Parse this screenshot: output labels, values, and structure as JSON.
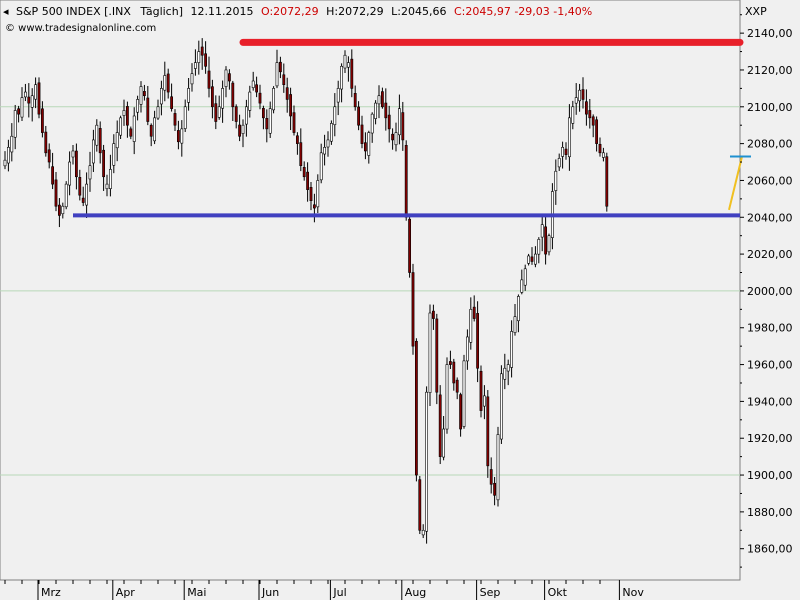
{
  "header": {
    "symbol": "S&P 500 INDEX [.INX",
    "period": "Täglich]",
    "date": "12.11.2015",
    "ohlc": "O:2072,29 H:2072,29 L:2045,66 C:2045,97 -29,03 -1,40%",
    "ohlc_parts": [
      {
        "text": "O:2072,29",
        "color": "#cc0000"
      },
      {
        "text": "H:2072,29",
        "color": "#000000"
      },
      {
        "text": "L:2045,66",
        "color": "#000000"
      },
      {
        "text": "C:2045,97 -29,03 -1,40%",
        "color": "#cc0000"
      }
    ],
    "watermark": "© www.tradesignalonline.com",
    "corner_label": "XXP"
  },
  "colors": {
    "up_candle": "#ffffff",
    "down_candle": "#800000",
    "resistance_line": "#e8202a",
    "support_line": "#4040c0",
    "projection_line": "#f0c020",
    "target_marker": "#1e90d0",
    "gridline": "#b8d8b8"
  },
  "chart_data": {
    "type": "candlestick",
    "title": "S&P 500 INDEX [.INX Täglich]",
    "y_axis": {
      "side": "right",
      "ylim": [
        1843,
        2158
      ],
      "ticks": [
        2140,
        2120,
        2100,
        2080,
        2060,
        2040,
        2020,
        2000,
        1980,
        1960,
        1940,
        1920,
        1900,
        1880,
        1860
      ],
      "tick_labels": [
        "2140,00",
        "2120,00",
        "2100,00",
        "2080,00",
        "2060,00",
        "2040,00",
        "2020,00",
        "2000,00",
        "1980,00",
        "1960,00",
        "1940,00",
        "1920,00",
        "1900,00",
        "1880,00",
        "1860,00"
      ],
      "major_gridlines": [
        2100,
        2000,
        1900
      ]
    },
    "x_axis": {
      "months": [
        "Mrz",
        "Apr",
        "Mai",
        "Jun",
        "Jul",
        "Aug",
        "Sep",
        "Okt",
        "Nov"
      ],
      "month_start_index": [
        10,
        32,
        53,
        75,
        96,
        117,
        139,
        159,
        181
      ]
    },
    "closes": [
      2071,
      2078,
      2084,
      2098,
      2096,
      2105,
      2108,
      2102,
      2106,
      2112,
      2096,
      2086,
      2075,
      2070,
      2058,
      2046,
      2041,
      2046,
      2058,
      2070,
      2076,
      2062,
      2052,
      2048,
      2058,
      2068,
      2082,
      2090,
      2075,
      2062,
      2058,
      2066,
      2080,
      2086,
      2094,
      2098,
      2090,
      2084,
      2095,
      2104,
      2111,
      2106,
      2092,
      2084,
      2094,
      2100,
      2110,
      2117,
      2108,
      2099,
      2090,
      2081,
      2088,
      2100,
      2110,
      2118,
      2124,
      2130,
      2128,
      2122,
      2110,
      2100,
      2092,
      2100,
      2110,
      2120,
      2114,
      2100,
      2092,
      2084,
      2090,
      2100,
      2108,
      2114,
      2108,
      2102,
      2094,
      2088,
      2099,
      2110,
      2124,
      2119,
      2112,
      2104,
      2095,
      2086,
      2080,
      2068,
      2062,
      2055,
      2049,
      2045,
      2060,
      2075,
      2078,
      2082,
      2091,
      2100,
      2110,
      2122,
      2128,
      2124,
      2110,
      2100,
      2090,
      2080,
      2076,
      2086,
      2096,
      2102,
      2106,
      2100,
      2094,
      2088,
      2082,
      2086,
      2099,
      2082,
      2040,
      2010,
      1970,
      1900,
      1870,
      1870,
      1945,
      1988,
      1985,
      1945,
      1910,
      1925,
      1960,
      1960,
      1950,
      1945,
      1925,
      1962,
      1975,
      1990,
      1985,
      1958,
      1935,
      1943,
      1905,
      1895,
      1889,
      1922,
      1955,
      1958,
      1960,
      1978,
      1986,
      1997,
      2006,
      2012,
      2019,
      2016,
      2020,
      2028,
      2036,
      2020,
      2030,
      2054,
      2065,
      2072,
      2078,
      2074,
      2094,
      2100,
      2105,
      2109,
      2104,
      2096,
      2094,
      2090,
      2080,
      2075,
      2075,
      2046
    ],
    "annotations": [
      {
        "type": "horizontal-line",
        "name": "resistance",
        "value": 2135,
        "from_index": 70,
        "to_index": 206
      },
      {
        "type": "horizontal-line",
        "name": "support",
        "value": 2041,
        "from_index": 20,
        "to_index": 206
      },
      {
        "type": "projection-line",
        "from_value": 2044,
        "to_value": 2073
      },
      {
        "type": "target-marker",
        "value": 2073
      }
    ]
  }
}
